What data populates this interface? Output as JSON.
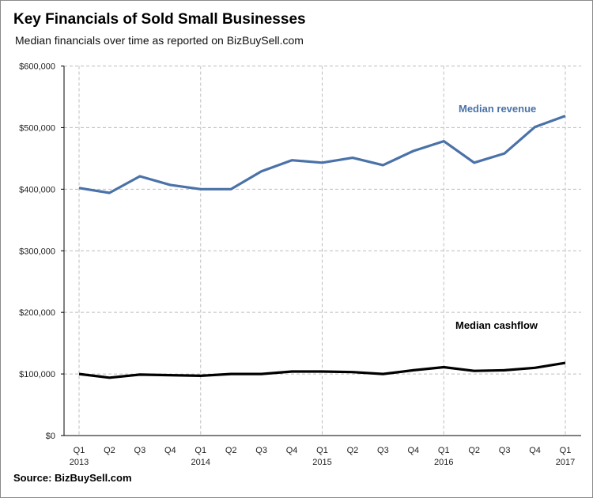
{
  "chart_data": {
    "type": "line",
    "title": "Key Financials of Sold Small Businesses",
    "subtitle": "Median financials over time as reported  on  BizBuySell.com",
    "source": "Source: BizBuySell.com",
    "xlabel": "",
    "ylabel": "",
    "x": [
      "Q1 2013",
      "Q2 2013",
      "Q3 2013",
      "Q4 2013",
      "Q1 2014",
      "Q2 2014",
      "Q3 2014",
      "Q4 2014",
      "Q1 2015",
      "Q2 2015",
      "Q3 2015",
      "Q4 2015",
      "Q1 2016",
      "Q2 2016",
      "Q3 2016",
      "Q4 2016",
      "Q1 2017"
    ],
    "x_tick_labels": [
      {
        "q": "Q1",
        "year": "2013"
      },
      {
        "q": "Q2",
        "year": ""
      },
      {
        "q": "Q3",
        "year": ""
      },
      {
        "q": "Q4",
        "year": ""
      },
      {
        "q": "Q1",
        "year": "2014"
      },
      {
        "q": "Q2",
        "year": ""
      },
      {
        "q": "Q3",
        "year": ""
      },
      {
        "q": "Q4",
        "year": ""
      },
      {
        "q": "Q1",
        "year": "2015"
      },
      {
        "q": "Q2",
        "year": ""
      },
      {
        "q": "Q3",
        "year": ""
      },
      {
        "q": "Q4",
        "year": ""
      },
      {
        "q": "Q1",
        "year": "2016"
      },
      {
        "q": "Q2",
        "year": ""
      },
      {
        "q": "Q3",
        "year": ""
      },
      {
        "q": "Q4",
        "year": ""
      },
      {
        "q": "Q1",
        "year": "2017"
      }
    ],
    "ylim": [
      0,
      600000
    ],
    "y_ticks": [
      0,
      100000,
      200000,
      300000,
      400000,
      500000,
      600000
    ],
    "y_tick_labels": [
      "$0",
      "$100,000",
      "$200,000",
      "$300,000",
      "$400,000",
      "$500,000",
      "$600,000"
    ],
    "grid": true,
    "series": [
      {
        "name": "Median revenue",
        "color": "#4A72A8",
        "values": [
          402000,
          394000,
          421000,
          407000,
          400000,
          400000,
          429000,
          447000,
          443000,
          451000,
          439000,
          462000,
          478000,
          443000,
          458000,
          501000,
          519000
        ]
      },
      {
        "name": "Median cashflow",
        "color": "#000000",
        "values": [
          100000,
          94000,
          99000,
          98000,
          97000,
          100000,
          100000,
          104000,
          104000,
          103000,
          100000,
          106000,
          111000,
          105000,
          106000,
          110000,
          118000
        ]
      }
    ],
    "legend": "inline-labels"
  }
}
